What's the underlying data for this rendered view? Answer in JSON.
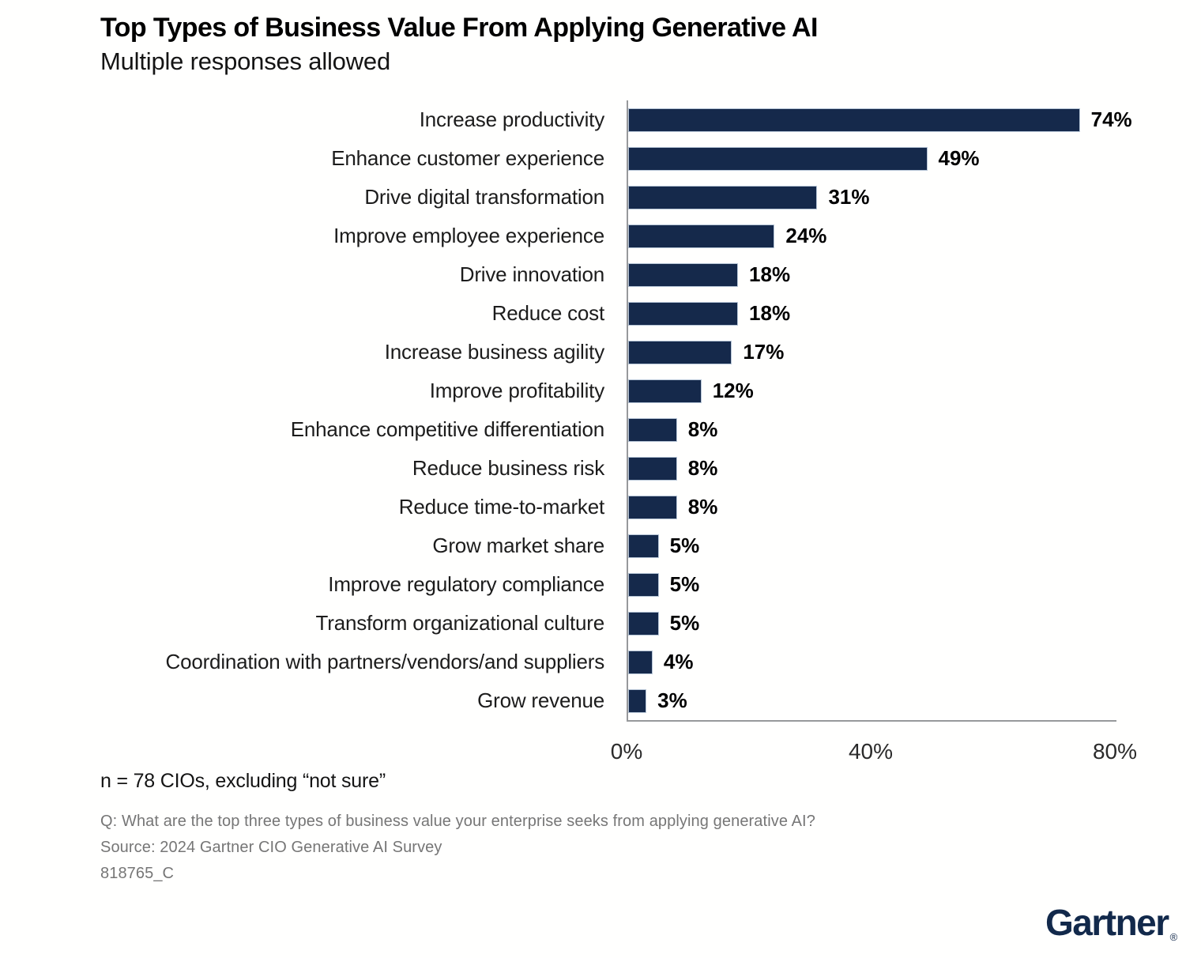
{
  "header": {
    "title": "Top Types of Business Value From Applying Generative AI",
    "subtitle": "Multiple responses allowed"
  },
  "chart_data": {
    "type": "bar",
    "orientation": "horizontal",
    "title": "Top Types of Business Value From Applying Generative AI",
    "subtitle": "Multiple responses allowed",
    "categories": [
      "Increase productivity",
      "Enhance customer experience",
      "Drive digital transformation",
      "Improve employee experience",
      "Drive innovation",
      "Reduce cost",
      "Increase business agility",
      "Improve profitability",
      "Enhance competitive differentiation",
      "Reduce business risk",
      "Reduce time-to-market",
      "Grow market share",
      "Improve regulatory compliance",
      "Transform organizational culture",
      "Coordination with partners/vendors/and suppliers",
      "Grow revenue"
    ],
    "values": [
      74,
      49,
      31,
      24,
      18,
      18,
      17,
      12,
      8,
      8,
      8,
      5,
      5,
      5,
      4,
      3
    ],
    "value_suffix": "%",
    "xlabel": "",
    "ylabel": "",
    "xlim": [
      0,
      80
    ],
    "x_ticks": [
      "0%",
      "40%",
      "80%"
    ],
    "grid": false,
    "legend": false,
    "bar_color": "#15294B",
    "bar_edge_color": "#B6C5D6",
    "axis_color": "#97999B"
  },
  "footer": {
    "note": "n = 78 CIOs, excluding “not sure”",
    "question": "Q: What are the top three types of business value your enterprise seeks from applying generative AI?",
    "source": "Source: 2024 Gartner CIO Generative AI Survey",
    "doc_id": "818765_C"
  },
  "branding": {
    "logo_text": "Gartner",
    "registered_mark": "®",
    "logo_color": "#12294B"
  }
}
